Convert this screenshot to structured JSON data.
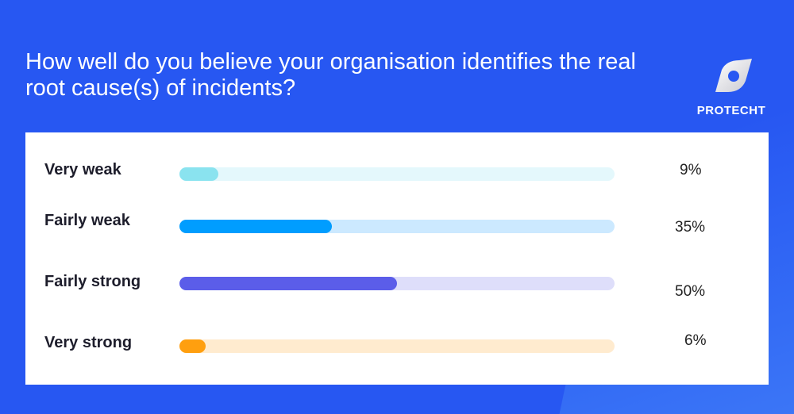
{
  "title": "How well do you believe your organisation identifies the real root cause(s) of incidents?",
  "logo": {
    "text": "PROTECHT"
  },
  "chart_data": {
    "type": "bar",
    "orientation": "horizontal",
    "categories": [
      "Very weak",
      "Fairly weak",
      "Fairly strong",
      "Very strong"
    ],
    "values": [
      9,
      35,
      50,
      6
    ],
    "value_labels": [
      "9%",
      "35%",
      "50%",
      "6%"
    ],
    "xlim": [
      0,
      100
    ],
    "colors": [
      "#8ae3ef",
      "#009dff",
      "#5b5de9",
      "#ff9f0f"
    ],
    "track_colors": [
      "#e4f8fc",
      "#cce9ff",
      "#dedefa",
      "#ffebcf"
    ],
    "grid": false
  }
}
